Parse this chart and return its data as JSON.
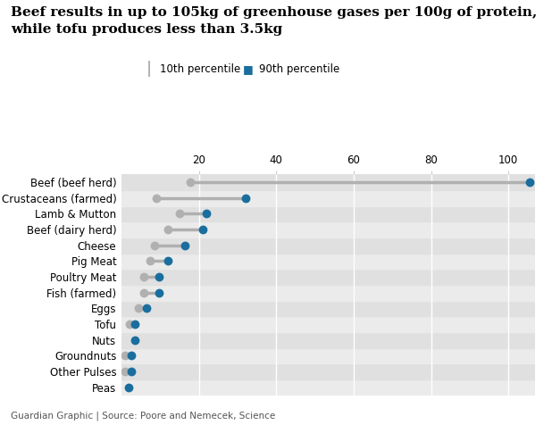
{
  "title_line1": "Beef results in up to 105kg of greenhouse gases per 100g of protein,",
  "title_line2": "while tofu produces less than 3.5kg",
  "categories": [
    "Beef (beef herd)",
    "Crustaceans (farmed)",
    "Lamb & Mutton",
    "Beef (dairy herd)",
    "Cheese",
    "Pig Meat",
    "Poultry Meat",
    "Fish (farmed)",
    "Eggs",
    "Tofu",
    "Nuts",
    "Groundnuts",
    "Other Pulses",
    "Peas"
  ],
  "p10": [
    17.7,
    9.0,
    15.0,
    12.0,
    8.5,
    7.5,
    5.7,
    5.7,
    4.5,
    2.2,
    0,
    1.0,
    1.0,
    0
  ],
  "p90": [
    105.4,
    32.0,
    22.0,
    21.0,
    16.5,
    12.0,
    9.8,
    9.8,
    6.5,
    3.5,
    3.5,
    2.5,
    2.5,
    1.8
  ],
  "color_10th": "#b0b0b0",
  "color_90th": "#1a6e9e",
  "xlim_min": 0,
  "xlim_max": 107,
  "xticks": [
    20,
    40,
    60,
    80,
    100
  ],
  "row_bg_light": "#ebebeb",
  "row_bg_dark": "#e0e0e0",
  "source_text": "Guardian Graphic | Source: Poore and Nemecek, Science",
  "legend_10th": "10th percentile",
  "legend_90th": "90th percentile"
}
